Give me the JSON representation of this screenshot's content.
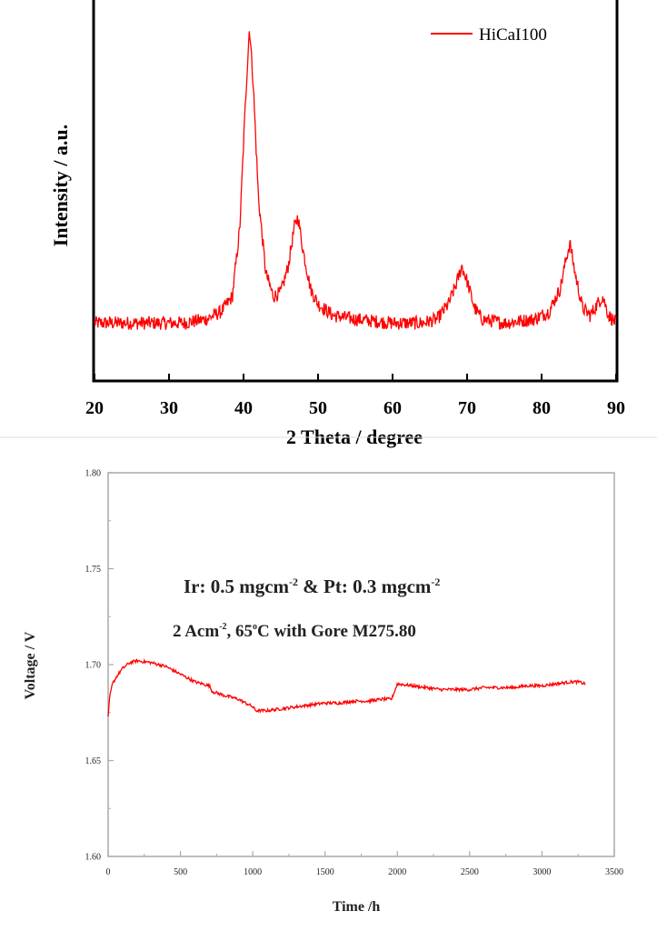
{
  "colors": {
    "series": "#ff0000",
    "axis": "#000000",
    "lower_frame": "#aaaaaa",
    "separator": "#dddddd",
    "lower_text": "#222222"
  },
  "chart_data": [
    {
      "type": "line",
      "xlabel": "2 Theta / degree",
      "ylabel": "Intensity / a.u.",
      "xlim": [
        20,
        90
      ],
      "ylim": [
        0,
        100
      ],
      "x_ticks": [
        20,
        30,
        40,
        50,
        60,
        70,
        80,
        90
      ],
      "y_ticks_shown": false,
      "grid": false,
      "legend": "top-right",
      "legend_entries": [
        "HiCaI100"
      ],
      "series": [
        {
          "name": "HiCaI100",
          "points": [
            [
              20,
              15
            ],
            [
              24,
              15
            ],
            [
              28,
              15
            ],
            [
              32,
              15
            ],
            [
              35,
              16
            ],
            [
              37,
              18
            ],
            [
              38.5,
              22
            ],
            [
              39.5,
              40
            ],
            [
              40.3,
              75
            ],
            [
              40.8,
              93
            ],
            [
              41.3,
              78
            ],
            [
              42,
              48
            ],
            [
              43,
              28
            ],
            [
              44,
              22
            ],
            [
              45,
              23
            ],
            [
              46,
              30
            ],
            [
              46.8,
              40
            ],
            [
              47.3,
              43
            ],
            [
              48,
              34
            ],
            [
              49,
              24
            ],
            [
              50,
              20
            ],
            [
              52,
              17
            ],
            [
              55,
              16
            ],
            [
              60,
              15
            ],
            [
              64,
              15
            ],
            [
              66,
              16
            ],
            [
              67.5,
              20
            ],
            [
              68.5,
              25
            ],
            [
              69.3,
              30
            ],
            [
              70,
              26
            ],
            [
              71,
              19
            ],
            [
              72,
              16
            ],
            [
              75,
              15
            ],
            [
              79,
              16
            ],
            [
              81,
              18
            ],
            [
              82.5,
              24
            ],
            [
              83.3,
              32
            ],
            [
              83.8,
              36
            ],
            [
              84.5,
              28
            ],
            [
              85.5,
              19
            ],
            [
              86.5,
              17
            ],
            [
              87.5,
              20
            ],
            [
              88.2,
              22
            ],
            [
              89,
              17
            ],
            [
              90,
              15
            ]
          ]
        }
      ]
    },
    {
      "type": "line",
      "xlabel": "Time /h",
      "ylabel": "Voltage / V",
      "xlim": [
        0,
        3500
      ],
      "ylim": [
        1.6,
        1.8
      ],
      "x_ticks": [
        "0",
        "500",
        "1000",
        "1500",
        "2000",
        "2500",
        "3000",
        "3500"
      ],
      "y_ticks": [
        "1.60",
        "1.65",
        "1.70",
        "1.75",
        "1.80"
      ],
      "grid": false,
      "annotations": [
        {
          "parts": [
            {
              "text": "Ir: 0.5 mgcm"
            },
            {
              "text": "-2",
              "sup": true
            },
            {
              "text": " & Pt: 0.3 mgcm"
            },
            {
              "text": "-2",
              "sup": true
            }
          ]
        },
        {
          "parts": [
            {
              "text": "2 Acm"
            },
            {
              "text": "-2",
              "sup": true
            },
            {
              "text": ",   65"
            },
            {
              "text": "o",
              "sup": true
            },
            {
              "text": "C with Gore M275.80"
            }
          ]
        }
      ],
      "series": [
        {
          "points": [
            [
              0,
              1.673
            ],
            [
              10,
              1.683
            ],
            [
              30,
              1.69
            ],
            [
              60,
              1.694
            ],
            [
              100,
              1.698
            ],
            [
              150,
              1.701
            ],
            [
              200,
              1.702
            ],
            [
              250,
              1.7015
            ],
            [
              300,
              1.701
            ],
            [
              350,
              1.7
            ],
            [
              400,
              1.699
            ],
            [
              450,
              1.697
            ],
            [
              500,
              1.695
            ],
            [
              550,
              1.693
            ],
            [
              600,
              1.691
            ],
            [
              650,
              1.69
            ],
            [
              700,
              1.689
            ],
            [
              720,
              1.686
            ],
            [
              760,
              1.685
            ],
            [
              800,
              1.684
            ],
            [
              850,
              1.683
            ],
            [
              900,
              1.682
            ],
            [
              950,
              1.68
            ],
            [
              1000,
              1.678
            ],
            [
              1020,
              1.676
            ],
            [
              1100,
              1.676
            ],
            [
              1200,
              1.677
            ],
            [
              1300,
              1.678
            ],
            [
              1400,
              1.679
            ],
            [
              1500,
              1.68
            ],
            [
              1600,
              1.68
            ],
            [
              1700,
              1.681
            ],
            [
              1800,
              1.681
            ],
            [
              1900,
              1.682
            ],
            [
              1960,
              1.682
            ],
            [
              1985,
              1.687
            ],
            [
              2000,
              1.69
            ],
            [
              2100,
              1.689
            ],
            [
              2200,
              1.688
            ],
            [
              2300,
              1.687
            ],
            [
              2400,
              1.687
            ],
            [
              2500,
              1.687
            ],
            [
              2600,
              1.688
            ],
            [
              2700,
              1.688
            ],
            [
              2800,
              1.688
            ],
            [
              2900,
              1.689
            ],
            [
              3000,
              1.689
            ],
            [
              3100,
              1.69
            ],
            [
              3200,
              1.691
            ],
            [
              3250,
              1.691
            ],
            [
              3300,
              1.69
            ]
          ]
        }
      ]
    }
  ]
}
